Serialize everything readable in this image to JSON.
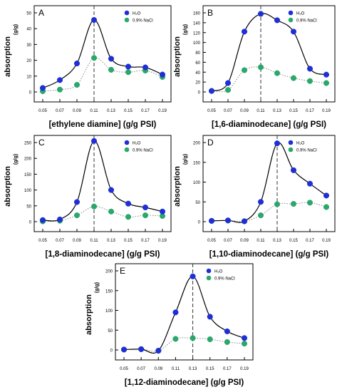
{
  "chart_data": [
    {
      "panel": "A",
      "type": "line",
      "x": [
        0.05,
        0.07,
        0.09,
        0.11,
        0.13,
        0.15,
        0.17,
        0.19
      ],
      "xticks": [
        "0.05",
        "0.07",
        "0.09",
        "0.11",
        "0.13",
        "0.15",
        "0.17",
        "0.19"
      ],
      "xlabel": "[ethylene diamine] (g/g PSI)",
      "ylabel": "absorption",
      "ylabel_unit": "(g/g)",
      "ylim": [
        0,
        50
      ],
      "yticks": [
        0,
        10,
        20,
        30,
        40,
        50
      ],
      "peak_line_x": 0.11,
      "legend": "top-right",
      "series": [
        {
          "name": "H₂O",
          "color": "#1f2fd6",
          "line_color": "#000000",
          "line_style": "solid",
          "values": [
            2.5,
            7.5,
            18,
            45.5,
            21,
            16,
            15.5,
            11
          ]
        },
        {
          "name": "0.9% NaCl",
          "color": "#2aa86b",
          "line_color": "#888888",
          "line_style": "dotted",
          "values": [
            0.5,
            1.5,
            4.5,
            21.5,
            14,
            12.5,
            13.5,
            9.5
          ]
        }
      ]
    },
    {
      "panel": "B",
      "type": "line",
      "x": [
        0.05,
        0.07,
        0.09,
        0.11,
        0.13,
        0.15,
        0.17,
        0.19
      ],
      "xticks": [
        "0.05",
        "0.07",
        "0.09",
        "0.11",
        "0.13",
        "0.15",
        "0.17",
        "0.19"
      ],
      "xlabel": "[1,6-diaminodecane] (g/g PSI)",
      "ylabel": "absorption",
      "ylabel_unit": "(g/g)",
      "ylim": [
        0,
        160
      ],
      "yticks": [
        0,
        20,
        40,
        60,
        80,
        100,
        120,
        140,
        160
      ],
      "peak_line_x": 0.11,
      "legend": "top-right",
      "series": [
        {
          "name": "H₂O",
          "color": "#1f2fd6",
          "line_color": "#000000",
          "line_style": "solid",
          "values": [
            2,
            18,
            122,
            158,
            145,
            122,
            47,
            35
          ]
        },
        {
          "name": "0.9% NaCl",
          "color": "#2aa86b",
          "line_color": "#888888",
          "line_style": "dotted",
          "values": [
            2,
            4,
            44,
            50,
            38,
            28,
            22,
            18
          ]
        }
      ]
    },
    {
      "panel": "C",
      "type": "line",
      "x": [
        0.05,
        0.07,
        0.09,
        0.11,
        0.13,
        0.15,
        0.17,
        0.19
      ],
      "xticks": [
        "0.05",
        "0.07",
        "0.09",
        "0.11",
        "0.13",
        "0.15",
        "0.17",
        "0.19"
      ],
      "xlabel": "[1,8-diaminodecane] (g/g PSI)",
      "ylabel": "absorption",
      "ylabel_unit": "(g/g)",
      "ylim": [
        0,
        250
      ],
      "yticks": [
        0,
        50,
        100,
        150,
        200,
        250
      ],
      "peak_line_x": 0.11,
      "legend": "top-right",
      "series": [
        {
          "name": "H₂O",
          "color": "#1f2fd6",
          "line_color": "#000000",
          "line_style": "solid",
          "values": [
            5,
            7,
            62,
            255,
            100,
            57,
            45,
            32
          ]
        },
        {
          "name": "0.9% NaCl",
          "color": "#2aa86b",
          "line_color": "#888888",
          "line_style": "dotted",
          "values": [
            1,
            3,
            20,
            48,
            32,
            15,
            20,
            18
          ]
        }
      ]
    },
    {
      "panel": "D",
      "type": "line",
      "x": [
        0.05,
        0.07,
        0.09,
        0.11,
        0.13,
        0.15,
        0.17,
        0.19
      ],
      "xticks": [
        "0.05",
        "0.07",
        "0.09",
        "0.11",
        "0.13",
        "0.15",
        "0.17",
        "0.19"
      ],
      "xlabel": "[1,10-diaminodecane] (g/g PSI)",
      "ylabel": "absorption",
      "ylabel_unit": "(g/g)",
      "ylim": [
        0,
        200
      ],
      "yticks": [
        0,
        50,
        100,
        150,
        200
      ],
      "peak_line_x": 0.13,
      "legend": "top-right",
      "series": [
        {
          "name": "H₂O",
          "color": "#1f2fd6",
          "line_color": "#000000",
          "line_style": "solid",
          "values": [
            2,
            3,
            1,
            50,
            198,
            130,
            96,
            66
          ]
        },
        {
          "name": "0.9% NaCl",
          "color": "#2aa86b",
          "line_color": "#888888",
          "line_style": "dotted",
          "values": [
            2,
            3,
            1,
            16,
            44,
            45,
            48,
            37
          ]
        }
      ]
    },
    {
      "panel": "E",
      "type": "line",
      "x": [
        0.05,
        0.07,
        0.09,
        0.11,
        0.13,
        0.15,
        0.17,
        0.19
      ],
      "xticks": [
        "0.05",
        "0.07",
        "0.09",
        "0.11",
        "0.13",
        "0.15",
        "0.17",
        "0.19"
      ],
      "xlabel": "[1,12-diaminodecane] (g/g PSI)",
      "ylabel": "absorption",
      "ylabel_unit": "(g/g)",
      "ylim": [
        0,
        200
      ],
      "yticks": [
        0,
        50,
        100,
        150,
        200
      ],
      "peak_line_x": 0.13,
      "legend": "top-right",
      "series": [
        {
          "name": "H₂O",
          "color": "#1f2fd6",
          "line_color": "#000000",
          "line_style": "solid",
          "values": [
            1,
            2,
            -2,
            95,
            186,
            84,
            47,
            30
          ]
        },
        {
          "name": "0.9% NaCl",
          "color": "#2aa86b",
          "line_color": "#888888",
          "line_style": "dotted",
          "values": [
            1,
            2,
            -2,
            28,
            30,
            27,
            20,
            16
          ]
        }
      ]
    }
  ]
}
